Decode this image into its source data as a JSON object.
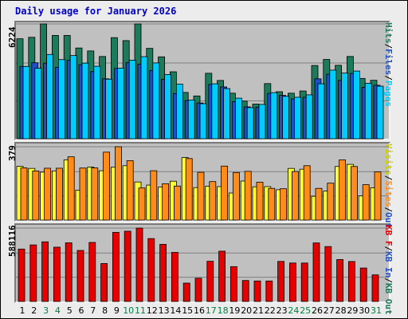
{
  "chart_data": {
    "type": "bar",
    "title": "Daily usage for January 2026",
    "days": [
      "1",
      "2",
      "3",
      "4",
      "5",
      "6",
      "7",
      "8",
      "9",
      "10",
      "11",
      "12",
      "13",
      "14",
      "15",
      "16",
      "17",
      "18",
      "19",
      "20",
      "21",
      "22",
      "23",
      "24",
      "25",
      "26",
      "27",
      "28",
      "29",
      "30",
      "31"
    ],
    "weekend_days": [
      3,
      4,
      10,
      11,
      17,
      18,
      24,
      25,
      31
    ],
    "colors": {
      "hits": "#1d7a5a",
      "files": "#1e4ec8",
      "pages": "#00ccff",
      "visits": "#ffff33",
      "sites": "#ff8c1a",
      "kbytes": "#e60000",
      "weekday_label": "#000000",
      "weekend_label": "#008040"
    },
    "panels": [
      {
        "name": "hits-files-pages",
        "max_label": "6224",
        "ymax": 6224,
        "legend": [
          {
            "text": "Hits",
            "color": "#1d7a5a"
          },
          {
            "text": "/",
            "color": "#000000"
          },
          {
            "text": "Files",
            "color": "#1e4ec8"
          },
          {
            "text": "/",
            "color": "#000000"
          },
          {
            "text": "Pages",
            "color": "#00ccff"
          }
        ],
        "series": [
          {
            "name": "Hits",
            "color": "#1d7a5a",
            "values": [
              5420,
              5500,
              6224,
              5600,
              5600,
              4920,
              4760,
              4460,
              5480,
              5320,
              6224,
              4900,
              4440,
              3630,
              2510,
              2320,
              3550,
              3160,
              2470,
              2040,
              1880,
              2990,
              2550,
              2470,
              2590,
              3970,
              4300,
              3980,
              4460,
              3270,
              3170
            ]
          },
          {
            "name": "Files",
            "color": "#1e4ec8",
            "values": [
              3920,
              4120,
              4100,
              3870,
              4250,
              4010,
              3640,
              3250,
              3810,
              4120,
              4040,
              3700,
              3230,
              2450,
              2070,
              1940,
              2940,
              2810,
              2010,
              1730,
              1710,
              2460,
              2350,
              2160,
              2250,
              3250,
              3500,
              3160,
              3540,
              2790,
              2900
            ]
          },
          {
            "name": "Pages",
            "color": "#00ccff",
            "values": [
              3920,
              3820,
              4570,
              4290,
              4510,
              4100,
              3930,
              3230,
              3830,
              4260,
              4450,
              4110,
              3480,
              2960,
              2100,
              1900,
              2980,
              2720,
              2200,
              1690,
              1860,
              2500,
              2300,
              2250,
              2380,
              2980,
              3720,
              3560,
              3670,
              3010,
              2850
            ]
          }
        ]
      },
      {
        "name": "visits-sites",
        "max_label": "379",
        "ymax": 379,
        "legend": [
          {
            "text": "Visits",
            "color": "#cccc00"
          },
          {
            "text": "/",
            "color": "#000000"
          },
          {
            "text": "Sites",
            "color": "#ff8c1a"
          },
          {
            "text": "/",
            "color": "#000000"
          },
          {
            "text": "Out",
            "color": "#1e4ec8"
          }
        ],
        "series": [
          {
            "name": "Visits",
            "color": "#ffff33",
            "values": [
              278,
              267,
              248,
              254,
              311,
              154,
              274,
              255,
              273,
              281,
              197,
              181,
              171,
              201,
              323,
              168,
              175,
              173,
              140,
              202,
              172,
              173,
              157,
              267,
              263,
              123,
              150,
              277,
              288,
              125,
              167
            ]
          },
          {
            "name": "Sites",
            "color": "#ff8c1a",
            "values": [
              270,
              254,
              268,
              268,
              327,
              269,
              270,
              351,
              379,
              307,
              166,
              255,
              188,
              176,
              318,
              247,
              199,
              279,
              246,
              252,
              196,
              164,
              162,
              251,
              281,
              164,
              191,
              311,
              277,
              183,
              249
            ]
          }
        ]
      },
      {
        "name": "kbytes",
        "max_label": "588116",
        "ymax": 588116,
        "legend": [
          {
            "text": "KB F",
            "color": "#e60000"
          },
          {
            "text": "/",
            "color": "#000000"
          },
          {
            "text": "KB In",
            "color": "#1e4ec8"
          },
          {
            "text": "/",
            "color": "#000000"
          },
          {
            "text": "KB Out",
            "color": "#1d7a5a"
          }
        ],
        "series": [
          {
            "name": "KBytes",
            "color": "#e60000",
            "values": [
              420000,
              453000,
              478000,
              435000,
              470000,
              409000,
              473000,
              304000,
              554000,
              563000,
              588116,
              504000,
              458000,
              393000,
              147000,
              186000,
              322000,
              403000,
              279000,
              168000,
              164000,
              164000,
              321000,
              308000,
              308000,
              469000,
              440000,
              336000,
              320000,
              268000,
              213000
            ]
          }
        ]
      }
    ]
  }
}
